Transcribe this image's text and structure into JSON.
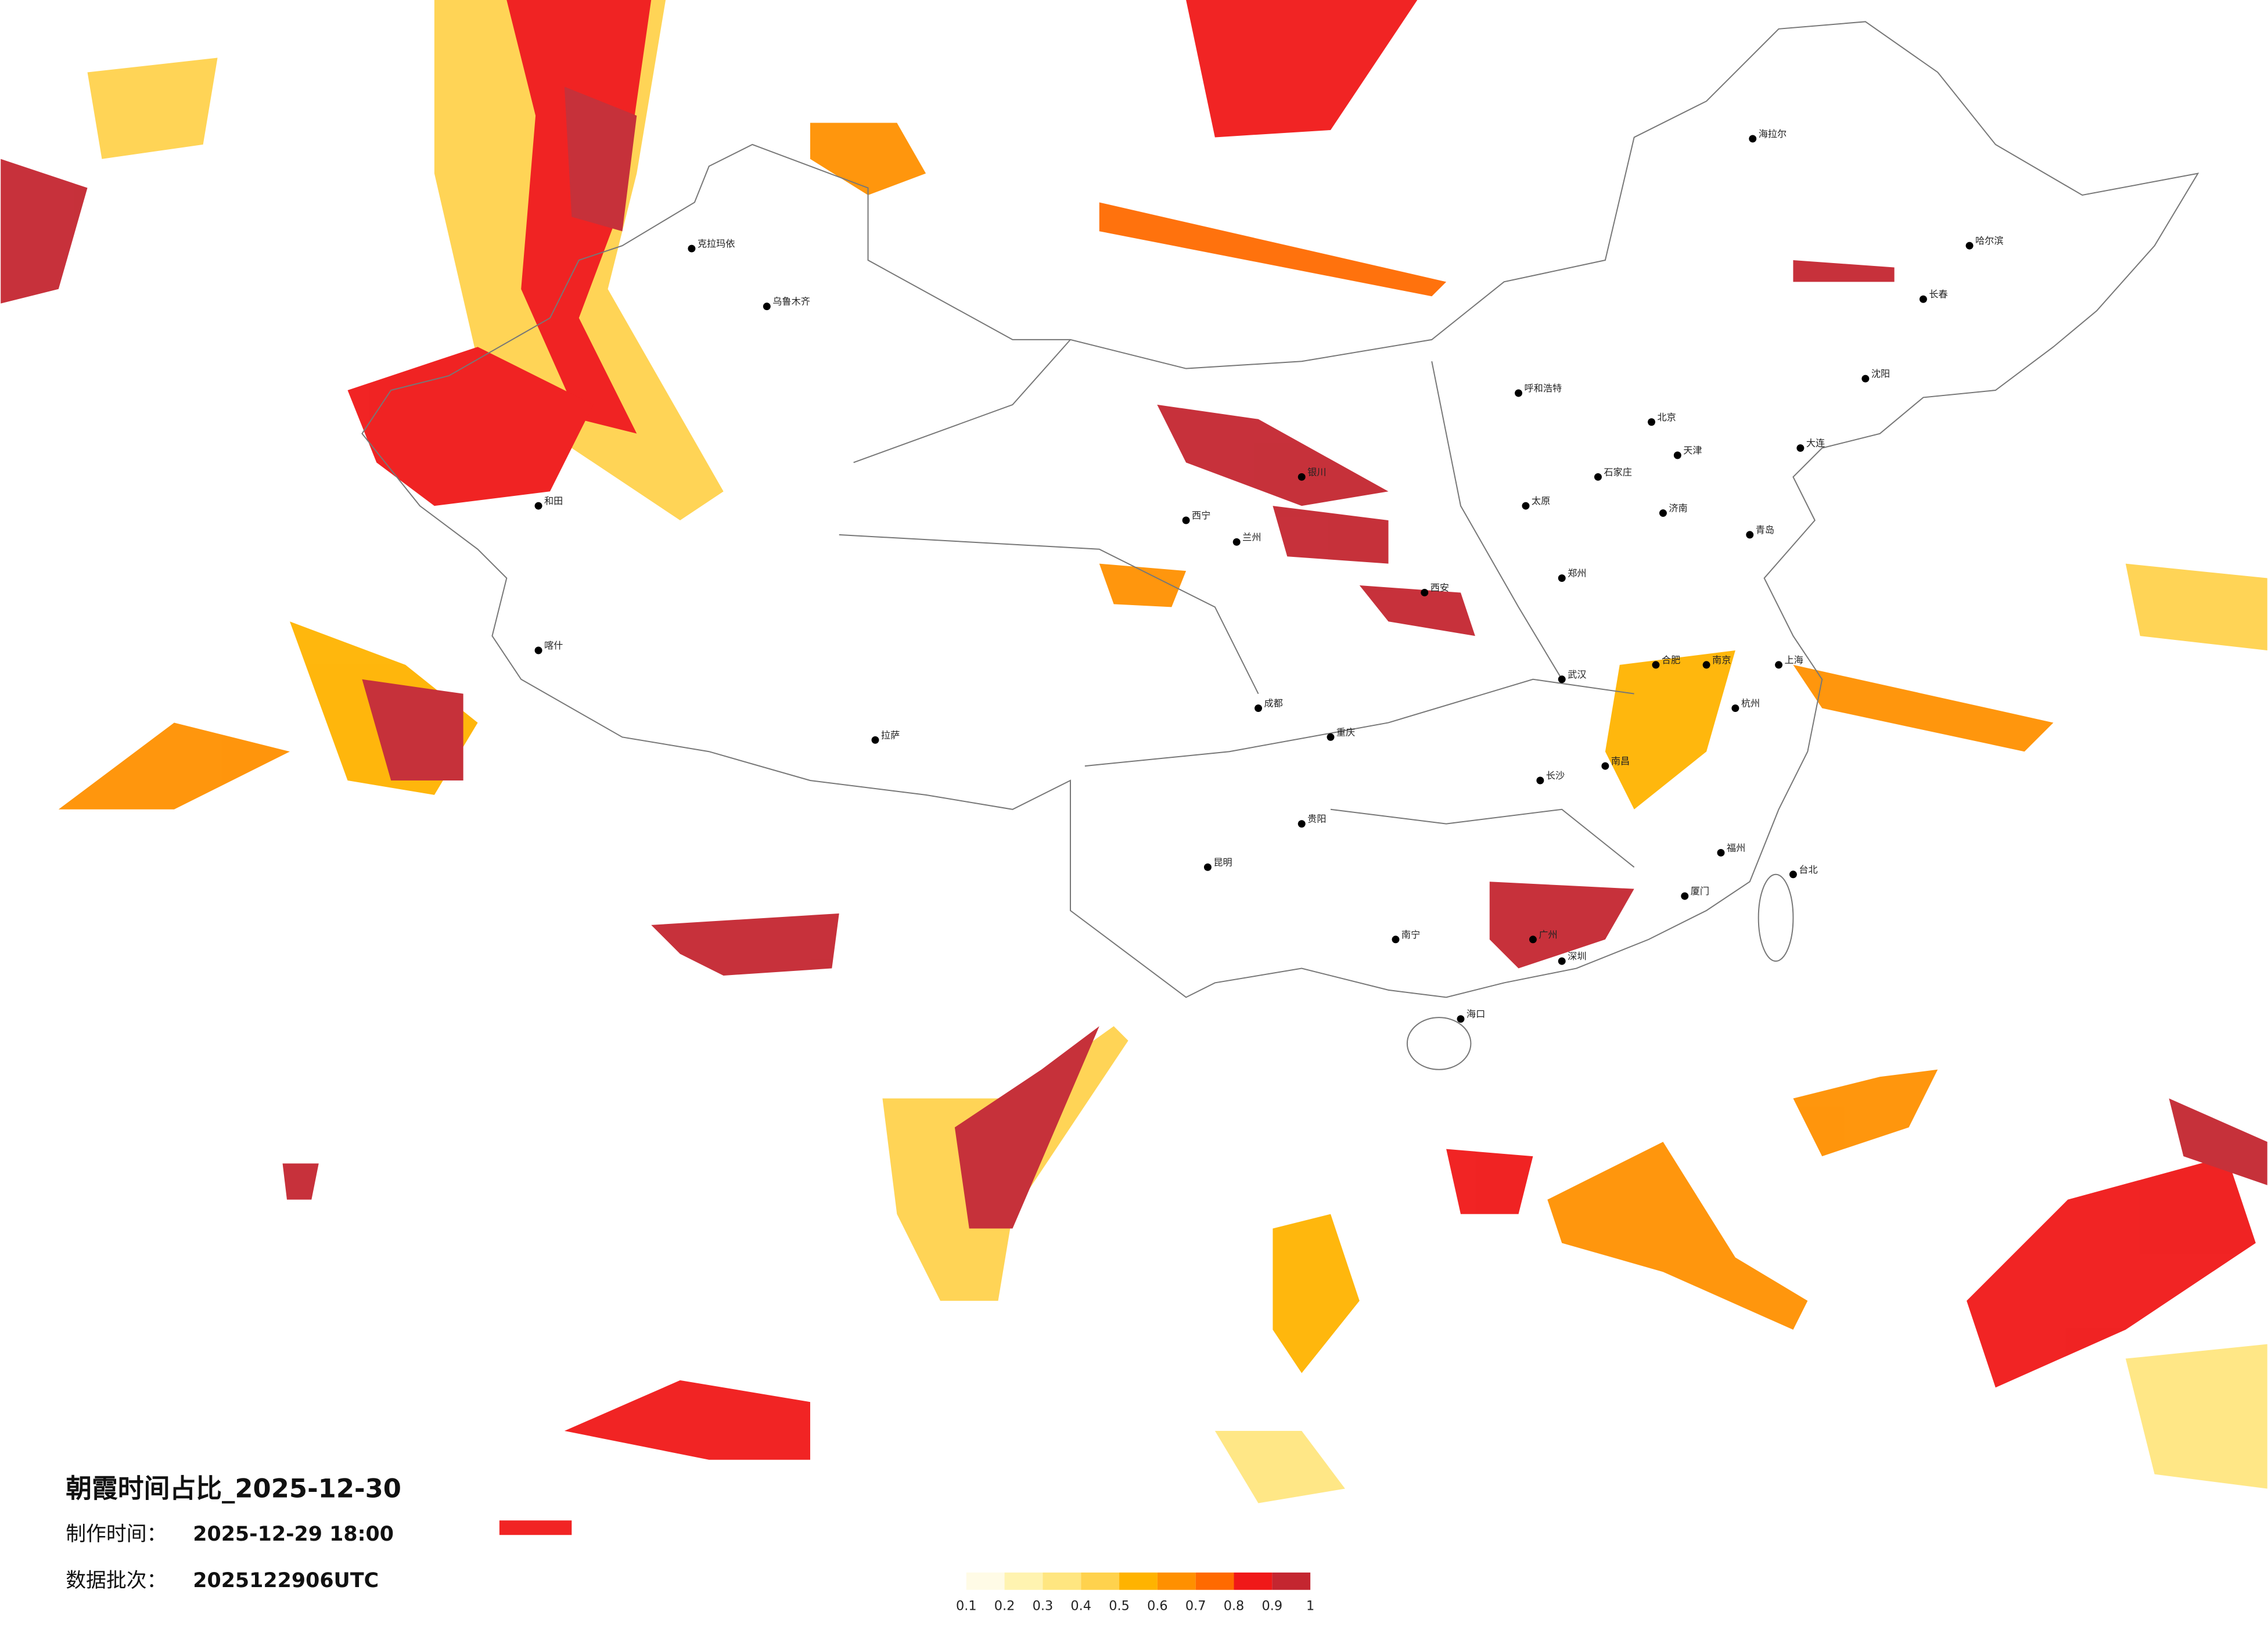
{
  "title": "朝霞时间占比_2025-12-30",
  "made_label": "制作时间：",
  "made_time": "2025-12-29 18:00",
  "batch_label": "数据批次：",
  "batch": "2025122906UTC",
  "legend": {
    "colors": [
      "#fffbe6",
      "#fff3b0",
      "#ffe680",
      "#ffd24d",
      "#ffb300",
      "#ff9000",
      "#ff6a00",
      "#f01818",
      "#c42630"
    ],
    "ticks": [
      0.1,
      0.2,
      0.3,
      0.4,
      0.5,
      0.6,
      0.7,
      0.8,
      0.9,
      1
    ]
  },
  "cities": [
    "哈尔滨",
    "长春",
    "沈阳",
    "北京",
    "天津",
    "石家庄",
    "太原",
    "呼和浩特",
    "济南",
    "郑州",
    "西安",
    "兰州",
    "西宁",
    "银川",
    "乌鲁木齐",
    "拉萨",
    "成都",
    "重庆",
    "贵阳",
    "昆明",
    "南宁",
    "广州",
    "深圳",
    "福州",
    "台北",
    "杭州",
    "上海",
    "南京",
    "合肥",
    "武汉",
    "长沙",
    "南昌",
    "海口",
    "喀什",
    "和田",
    "克拉玛依",
    "海拉尔",
    "大连",
    "青岛",
    "厦门"
  ]
}
